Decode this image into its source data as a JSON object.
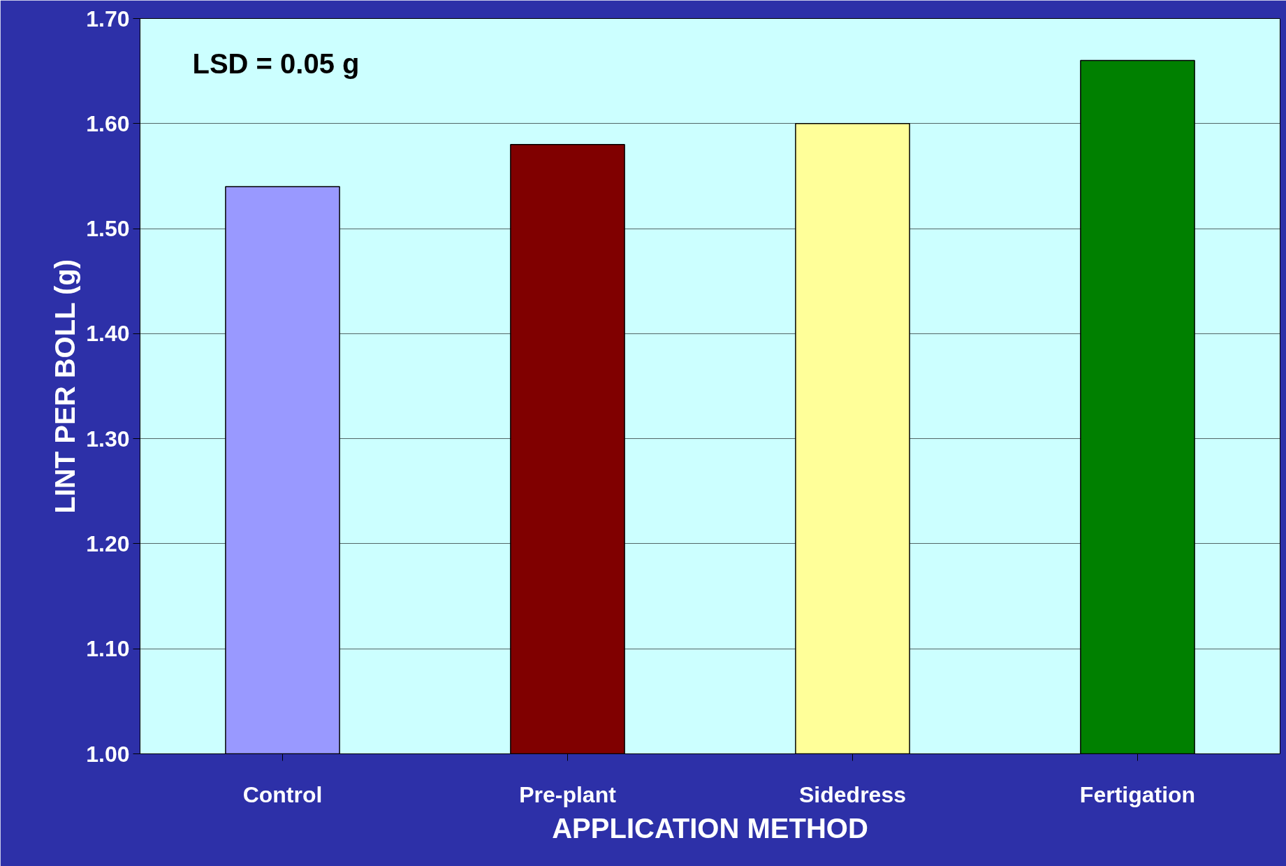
{
  "chart_data": {
    "type": "bar",
    "xlabel": "APPLICATION METHOD",
    "ylabel": "LINT PER BOLL (g)",
    "categories": [
      "Control",
      "Pre-plant",
      "Sidedress",
      "Fertigation"
    ],
    "values": [
      1.54,
      1.58,
      1.6,
      1.66
    ],
    "colors": [
      "#9999ff",
      "#800000",
      "#ffff99",
      "#008000"
    ],
    "ylim": [
      1.0,
      1.7
    ],
    "yticks": [
      {
        "value": 1.0,
        "label": "1.00"
      },
      {
        "value": 1.1,
        "label": "1.10"
      },
      {
        "value": 1.2,
        "label": "1.20"
      },
      {
        "value": 1.3,
        "label": "1.30"
      },
      {
        "value": 1.4,
        "label": "1.40"
      },
      {
        "value": 1.5,
        "label": "1.50"
      },
      {
        "value": 1.6,
        "label": "1.60"
      },
      {
        "value": 1.7,
        "label": "1.70"
      }
    ],
    "grid": "y",
    "annotations": [
      "LSD = 0.05 g"
    ]
  }
}
